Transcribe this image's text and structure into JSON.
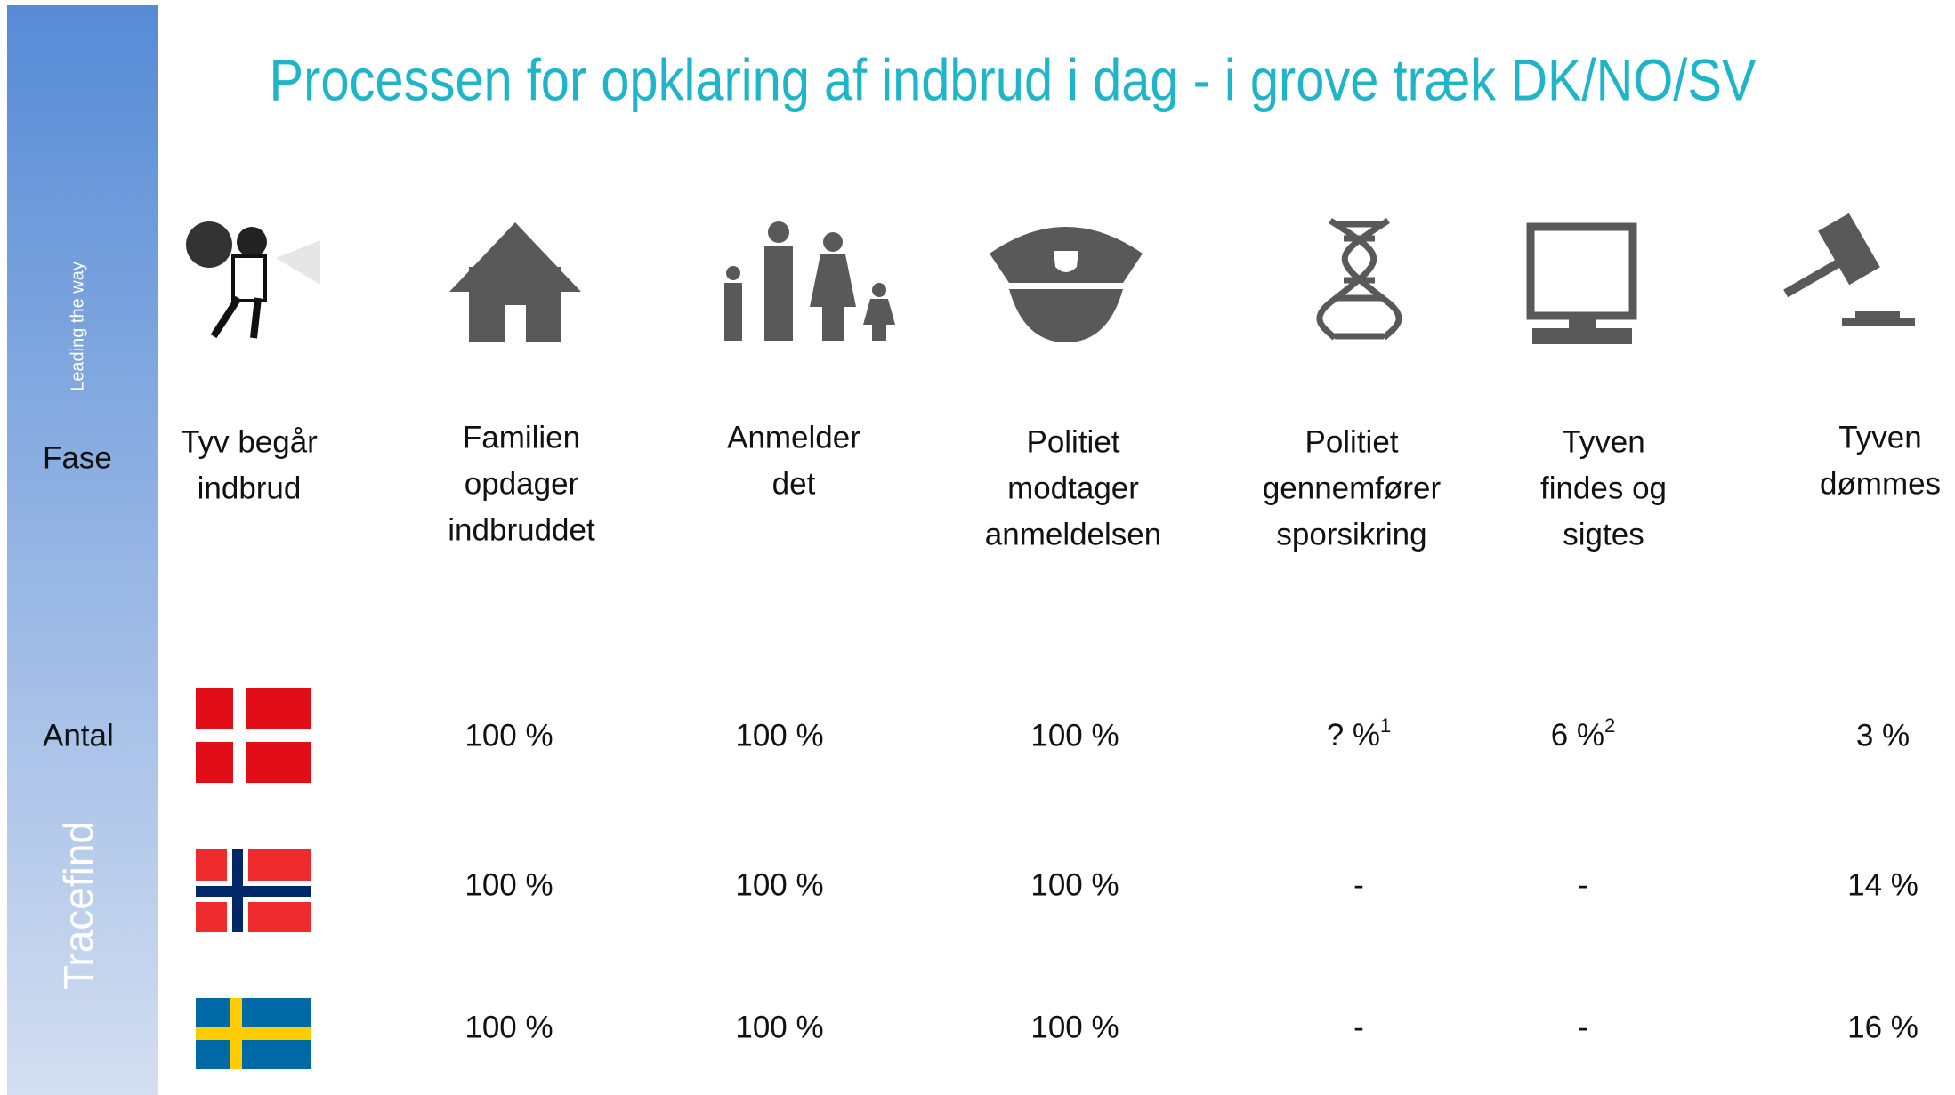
{
  "sidebar": {
    "top": "Leading the way",
    "bottom": "Tracefind"
  },
  "title": "Processen for opklaring af indbrud i dag - i grove træk DK/NO/SV",
  "row_labels": {
    "phase": "Fase",
    "count": "Antal"
  },
  "phases": [
    [
      "Tyv begår",
      "indbrud"
    ],
    [
      "Familien",
      "opdager",
      "indbruddet"
    ],
    [
      "Anmelder",
      "det"
    ],
    [
      "Politiet",
      "modtager",
      "anmeldelsen"
    ],
    [
      "Politiet",
      "gennemfører",
      "sporsikring"
    ],
    [
      "Tyven",
      "findes og",
      "sigtes"
    ],
    [
      "Tyven",
      "dømmes"
    ]
  ],
  "rows": [
    [
      "100 %",
      "100 %",
      "100 %",
      {
        "text": "? %",
        "note": "1"
      },
      {
        "text": "6 %",
        "note": "2"
      },
      "3 %"
    ],
    [
      "100 %",
      "100 %",
      "100 %",
      "-",
      "-",
      "14 %"
    ],
    [
      "100 %",
      "100 %",
      "100 %",
      "-",
      "-",
      "16 %"
    ]
  ]
}
